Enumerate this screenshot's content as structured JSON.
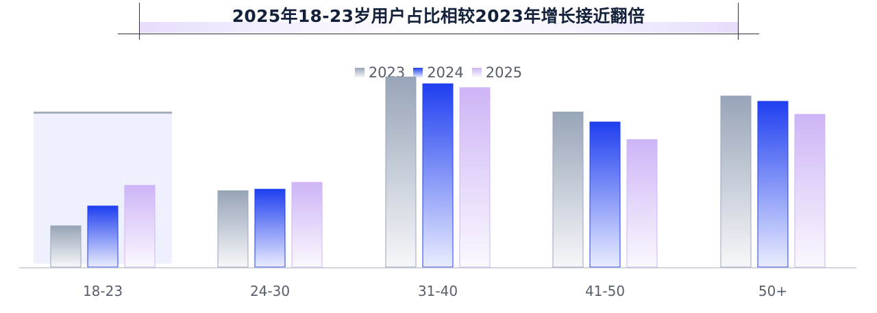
{
  "chart_data": {
    "type": "bar",
    "title": "2025年18-23岁用户占比相较2023年增长接近翻倍",
    "categories": [
      "18-23",
      "24-30",
      "31-40",
      "41-50",
      "50+"
    ],
    "series": [
      {
        "name": "2023",
        "values": [
          5.4,
          10.0,
          24.9,
          20.3,
          22.4
        ]
      },
      {
        "name": "2024",
        "values": [
          8.0,
          10.2,
          24.0,
          19.0,
          21.7
        ]
      },
      {
        "name": "2025",
        "values": [
          10.7,
          11.1,
          23.5,
          16.7,
          20.0
        ]
      }
    ],
    "highlight_category": "18-23",
    "ylim": [
      0,
      26
    ],
    "y_axis_shown": false,
    "grid": false,
    "legend_position": "top-center",
    "colors": {
      "2023": [
        "#98a4b8",
        "#f6f7f9"
      ],
      "2024": [
        "#1f3ff0",
        "#e9ecfe"
      ],
      "2025": [
        "#cdb5f6",
        "#fbf8fe"
      ],
      "highlight_bg": "#eef0fd",
      "highlight_line": "#a5adbc",
      "axis": "#c4c8cf",
      "title_text": "#14213a"
    }
  }
}
